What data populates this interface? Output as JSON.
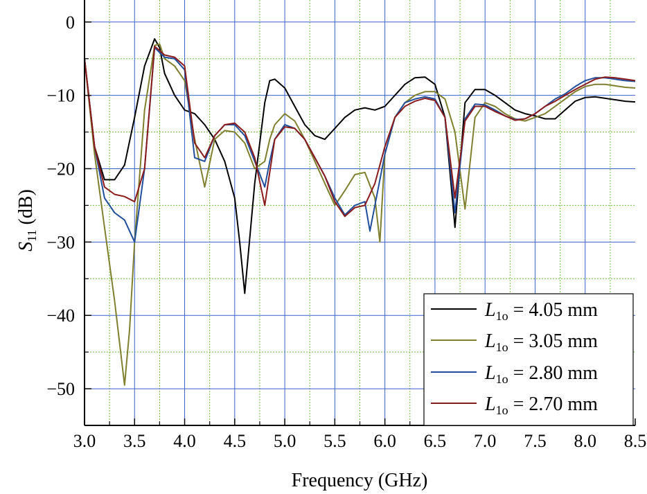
{
  "chart_data": {
    "type": "line",
    "xlabel": "Frequency (GHz)",
    "ylabel": {
      "main": "S",
      "sub": "11",
      "unit": " (dB)"
    },
    "xlim": [
      3.0,
      8.5
    ],
    "ylim": [
      -55,
      3
    ],
    "x_ticks": [
      "3.0",
      "3.5",
      "4.0",
      "4.5",
      "5.0",
      "5.5",
      "6.0",
      "6.5",
      "7.0",
      "7.5",
      "8.0",
      "8.5"
    ],
    "y_ticks": [
      "0",
      "−10",
      "−20",
      "−30",
      "−40",
      "−50"
    ],
    "grid": true,
    "legend_position": "bottom-right",
    "series": [
      {
        "label": {
          "name": "L",
          "sub": "1o",
          "value": " = 4.05 mm"
        },
        "color": "#000000",
        "x": [
          3.0,
          3.1,
          3.2,
          3.3,
          3.4,
          3.5,
          3.6,
          3.7,
          3.75,
          3.8,
          3.9,
          4.0,
          4.1,
          4.2,
          4.3,
          4.4,
          4.5,
          4.55,
          4.6,
          4.7,
          4.8,
          4.85,
          4.9,
          5.0,
          5.1,
          5.2,
          5.3,
          5.4,
          5.5,
          5.6,
          5.7,
          5.8,
          5.9,
          6.0,
          6.1,
          6.2,
          6.3,
          6.4,
          6.5,
          6.6,
          6.7,
          6.8,
          6.9,
          7.0,
          7.1,
          7.2,
          7.3,
          7.4,
          7.5,
          7.6,
          7.7,
          7.8,
          7.9,
          8.0,
          8.1,
          8.2,
          8.3,
          8.4,
          8.5
        ],
        "y": [
          -5,
          -17,
          -21.5,
          -21.5,
          -19.5,
          -13,
          -6,
          -2.3,
          -3.5,
          -7,
          -10,
          -12,
          -12.5,
          -14,
          -16,
          -19,
          -24,
          -30,
          -37,
          -22,
          -11,
          -8,
          -7.8,
          -9,
          -11.5,
          -14,
          -15.5,
          -16,
          -14.5,
          -13,
          -12,
          -11.7,
          -12,
          -11.5,
          -10,
          -8.5,
          -7.6,
          -7.5,
          -8.5,
          -13,
          -28,
          -11,
          -9.2,
          -9.2,
          -10,
          -11,
          -12,
          -12.5,
          -12.8,
          -13.2,
          -13.2,
          -12,
          -10.8,
          -10.3,
          -10.2,
          -10.4,
          -10.6,
          -10.8,
          -10.9
        ]
      },
      {
        "label": {
          "name": "L",
          "sub": "1o",
          "value": " = 3.05 mm"
        },
        "color": "#7f7f2e",
        "x": [
          3.0,
          3.1,
          3.2,
          3.3,
          3.4,
          3.45,
          3.5,
          3.6,
          3.7,
          3.75,
          3.8,
          3.9,
          4.0,
          4.1,
          4.2,
          4.3,
          4.4,
          4.5,
          4.6,
          4.7,
          4.8,
          4.85,
          4.9,
          5.0,
          5.1,
          5.2,
          5.3,
          5.4,
          5.5,
          5.6,
          5.7,
          5.8,
          5.9,
          5.95,
          6.0,
          6.1,
          6.2,
          6.3,
          6.4,
          6.5,
          6.6,
          6.7,
          6.8,
          6.9,
          7.0,
          7.1,
          7.2,
          7.3,
          7.4,
          7.5,
          7.6,
          7.7,
          7.8,
          7.9,
          8.0,
          8.1,
          8.2,
          8.3,
          8.4,
          8.5
        ],
        "y": [
          -5,
          -18,
          -28,
          -38,
          -49.5,
          -42,
          -30,
          -12,
          -3.2,
          -3,
          -5,
          -6,
          -8,
          -16,
          -22.5,
          -16,
          -14.8,
          -15,
          -16.5,
          -20,
          -19,
          -16,
          -14,
          -12.5,
          -13.5,
          -16,
          -19,
          -22,
          -25,
          -23,
          -20.8,
          -20.5,
          -24,
          -30,
          -18,
          -13,
          -11,
          -10,
          -9.5,
          -9.5,
          -10.5,
          -15,
          -25.5,
          -13,
          -11,
          -11.5,
          -12.5,
          -13.2,
          -13.5,
          -13,
          -12.5,
          -11.5,
          -10.5,
          -9.5,
          -8.8,
          -8.5,
          -8.5,
          -8.7,
          -8.9,
          -9.0
        ]
      },
      {
        "label": {
          "name": "L",
          "sub": "1o",
          "value": " = 2.80 mm"
        },
        "color": "#1f4e9c",
        "x": [
          3.0,
          3.1,
          3.2,
          3.3,
          3.4,
          3.5,
          3.6,
          3.7,
          3.8,
          3.9,
          4.0,
          4.1,
          4.2,
          4.3,
          4.4,
          4.5,
          4.6,
          4.7,
          4.8,
          4.85,
          4.9,
          5.0,
          5.1,
          5.2,
          5.3,
          5.4,
          5.5,
          5.6,
          5.7,
          5.8,
          5.85,
          5.9,
          6.0,
          6.1,
          6.2,
          6.3,
          6.4,
          6.5,
          6.6,
          6.7,
          6.8,
          6.9,
          7.0,
          7.1,
          7.2,
          7.3,
          7.4,
          7.5,
          7.6,
          7.7,
          7.8,
          7.9,
          8.0,
          8.1,
          8.2,
          8.3,
          8.4,
          8.5
        ],
        "y": [
          -5,
          -17,
          -24,
          -26,
          -27,
          -30,
          -20,
          -3.5,
          -4.8,
          -5,
          -6.5,
          -18.5,
          -19,
          -15.5,
          -14,
          -14,
          -15.5,
          -19,
          -22.5,
          -19,
          -16,
          -14,
          -14.5,
          -16,
          -18.5,
          -21,
          -24,
          -26.3,
          -25,
          -24.5,
          -28.5,
          -25,
          -18,
          -13,
          -11,
          -10.5,
          -10.2,
          -10.5,
          -13,
          -26,
          -13.2,
          -11.2,
          -11.3,
          -12,
          -12.8,
          -13.3,
          -13.2,
          -12.5,
          -11.5,
          -10.5,
          -9.8,
          -8.8,
          -8.0,
          -7.6,
          -7.6,
          -7.8,
          -8.0,
          -8.1
        ]
      },
      {
        "label": {
          "name": "L",
          "sub": "1o",
          "value": " = 2.70 mm"
        },
        "color": "#8b1a1a",
        "x": [
          3.0,
          3.1,
          3.2,
          3.3,
          3.4,
          3.5,
          3.6,
          3.7,
          3.8,
          3.9,
          4.0,
          4.1,
          4.2,
          4.3,
          4.4,
          4.5,
          4.6,
          4.7,
          4.8,
          4.9,
          5.0,
          5.1,
          5.2,
          5.3,
          5.4,
          5.5,
          5.6,
          5.7,
          5.8,
          5.9,
          6.0,
          6.1,
          6.2,
          6.3,
          6.4,
          6.5,
          6.6,
          6.7,
          6.8,
          6.9,
          7.0,
          7.1,
          7.2,
          7.3,
          7.4,
          7.5,
          7.6,
          7.7,
          7.8,
          7.9,
          8.0,
          8.1,
          8.2,
          8.3,
          8.4,
          8.5
        ],
        "y": [
          -5,
          -17,
          -22.5,
          -23.5,
          -23.8,
          -24.5,
          -20,
          -3.3,
          -4.5,
          -4.8,
          -6,
          -16.5,
          -18.5,
          -15.5,
          -14,
          -13.8,
          -15,
          -18.5,
          -25,
          -16,
          -14.3,
          -14.5,
          -16,
          -18.5,
          -21,
          -24.5,
          -26.5,
          -25.3,
          -25,
          -22,
          -17,
          -13,
          -11.5,
          -10.8,
          -10.4,
          -10.7,
          -13,
          -24,
          -13.5,
          -11.5,
          -11.5,
          -12.2,
          -12.8,
          -13.4,
          -13.2,
          -12.5,
          -11.5,
          -10.8,
          -10,
          -9.2,
          -8.5,
          -7.8,
          -7.5,
          -7.6,
          -7.8,
          -8.0
        ]
      }
    ]
  }
}
